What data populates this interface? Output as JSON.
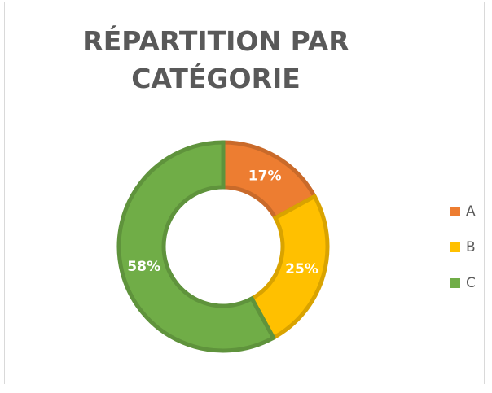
{
  "chart_data": {
    "type": "donut",
    "title": "RÉPARTITION PAR CATÉGORIE",
    "categories": [
      "A",
      "B",
      "C"
    ],
    "values": [
      17,
      25,
      58
    ],
    "value_labels": [
      "17%",
      "25%",
      "58%"
    ],
    "colors": [
      "#ED7D31",
      "#FFC000",
      "#70AD47"
    ],
    "legend": "right"
  }
}
